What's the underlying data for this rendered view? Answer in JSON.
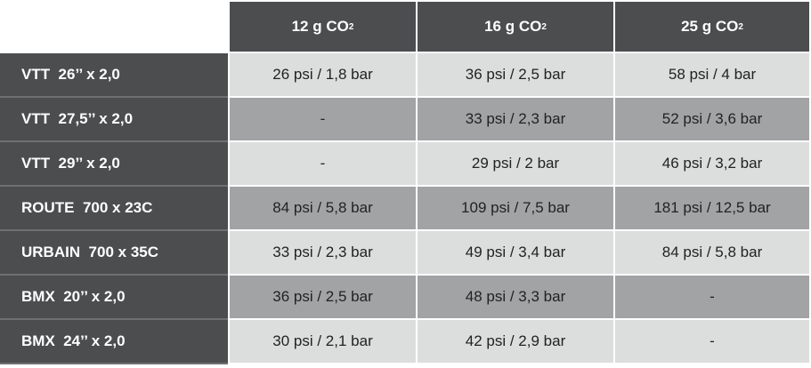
{
  "table": {
    "header": [
      {
        "text": "12 g CO",
        "sub": "2"
      },
      {
        "text": "16 g CO",
        "sub": "2"
      },
      {
        "text": "25 g CO",
        "sub": "2"
      }
    ],
    "rows": [
      {
        "label": "VTT  26’’ x 2,0",
        "cells": [
          "26 psi / 1,8 bar",
          "36 psi / 2,5 bar",
          "58 psi / 4 bar"
        ]
      },
      {
        "label": "VTT  27,5’’ x 2,0",
        "cells": [
          "-",
          "33 psi / 2,3 bar",
          "52 psi / 3,6 bar"
        ]
      },
      {
        "label": "VTT  29’’ x 2,0",
        "cells": [
          "-",
          "29 psi / 2 bar",
          "46 psi / 3,2 bar"
        ]
      },
      {
        "label": "ROUTE  700 x 23C",
        "cells": [
          "84 psi / 5,8 bar",
          "109 psi / 7,5 bar",
          "181 psi / 12,5 bar"
        ]
      },
      {
        "label": "URBAIN  700 x 35C",
        "cells": [
          "33 psi / 2,3 bar",
          "49 psi / 3,4 bar",
          "84 psi / 5,8 bar"
        ]
      },
      {
        "label": "BMX  20’’ x 2,0",
        "cells": [
          "36 psi / 2,5 bar",
          "48 psi / 3,3 bar",
          "-"
        ]
      },
      {
        "label": "BMX  24’’ x 2,0",
        "cells": [
          "30 psi / 2,1 bar",
          "42 psi / 2,9 bar",
          "-"
        ]
      }
    ]
  }
}
